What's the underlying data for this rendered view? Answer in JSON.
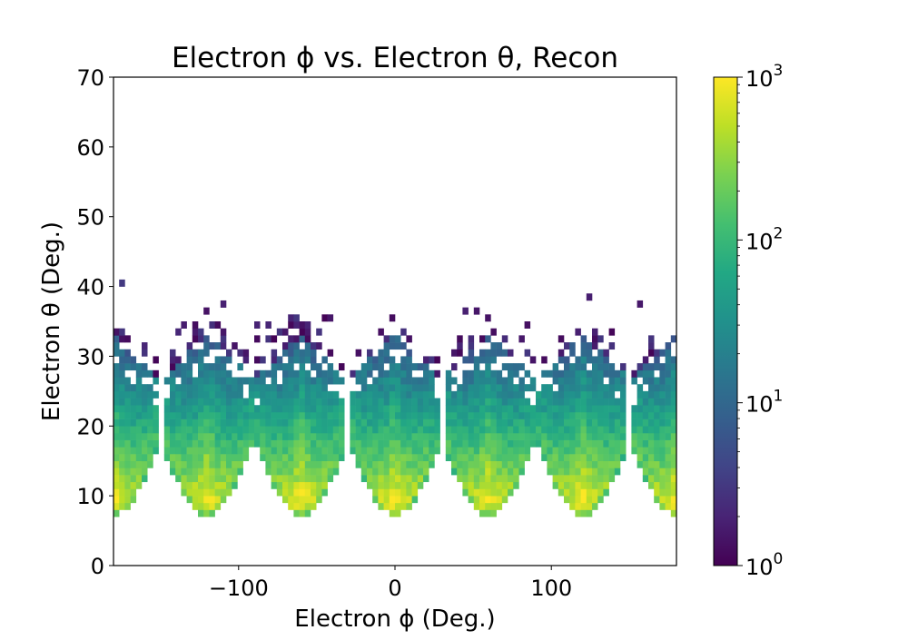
{
  "chart_data": {
    "type": "heatmap",
    "title": "Electron ϕ vs. Electron θ, Recon",
    "xlabel": "Electron ϕ (Deg.)",
    "ylabel": "Electron θ (Deg.)",
    "xlim": [
      -180,
      180
    ],
    "ylim": [
      0,
      70
    ],
    "x_ticks": [
      {
        "value": -100,
        "label": "−100"
      },
      {
        "value": 0,
        "label": "0"
      },
      {
        "value": 100,
        "label": "100"
      }
    ],
    "y_ticks": [
      {
        "value": 0,
        "label": "0"
      },
      {
        "value": 10,
        "label": "10"
      },
      {
        "value": 20,
        "label": "20"
      },
      {
        "value": 30,
        "label": "30"
      },
      {
        "value": 40,
        "label": "40"
      },
      {
        "value": 50,
        "label": "50"
      },
      {
        "value": 60,
        "label": "60"
      },
      {
        "value": 70,
        "label": "70"
      }
    ],
    "bin_width_x": 3.6,
    "bin_width_y": 1.0,
    "colormap": "viridis",
    "color_scale": "log",
    "color_range": [
      1,
      1000
    ],
    "colorbar": {
      "ticks": [
        {
          "value": 1,
          "base": "10",
          "exp": "0"
        },
        {
          "value": 10,
          "base": "10",
          "exp": "1"
        },
        {
          "value": 100,
          "base": "10",
          "exp": "2"
        },
        {
          "value": 1000,
          "base": "10",
          "exp": "3"
        }
      ]
    },
    "sectors": [
      {
        "center_phi": -180,
        "half_width_phi": 29
      },
      {
        "center_phi": -120,
        "half_width_phi": 29
      },
      {
        "center_phi": -60,
        "half_width_phi": 29
      },
      {
        "center_phi": 0,
        "half_width_phi": 29
      },
      {
        "center_phi": 60,
        "half_width_phi": 29
      },
      {
        "center_phi": 120,
        "half_width_phi": 29
      },
      {
        "center_phi": 180,
        "half_width_phi": 29
      }
    ],
    "theta_min": 7,
    "dense_theta_max": 33,
    "sparse_theta_max": 42,
    "peak_counts": 1000,
    "peak_theta": 9
  }
}
